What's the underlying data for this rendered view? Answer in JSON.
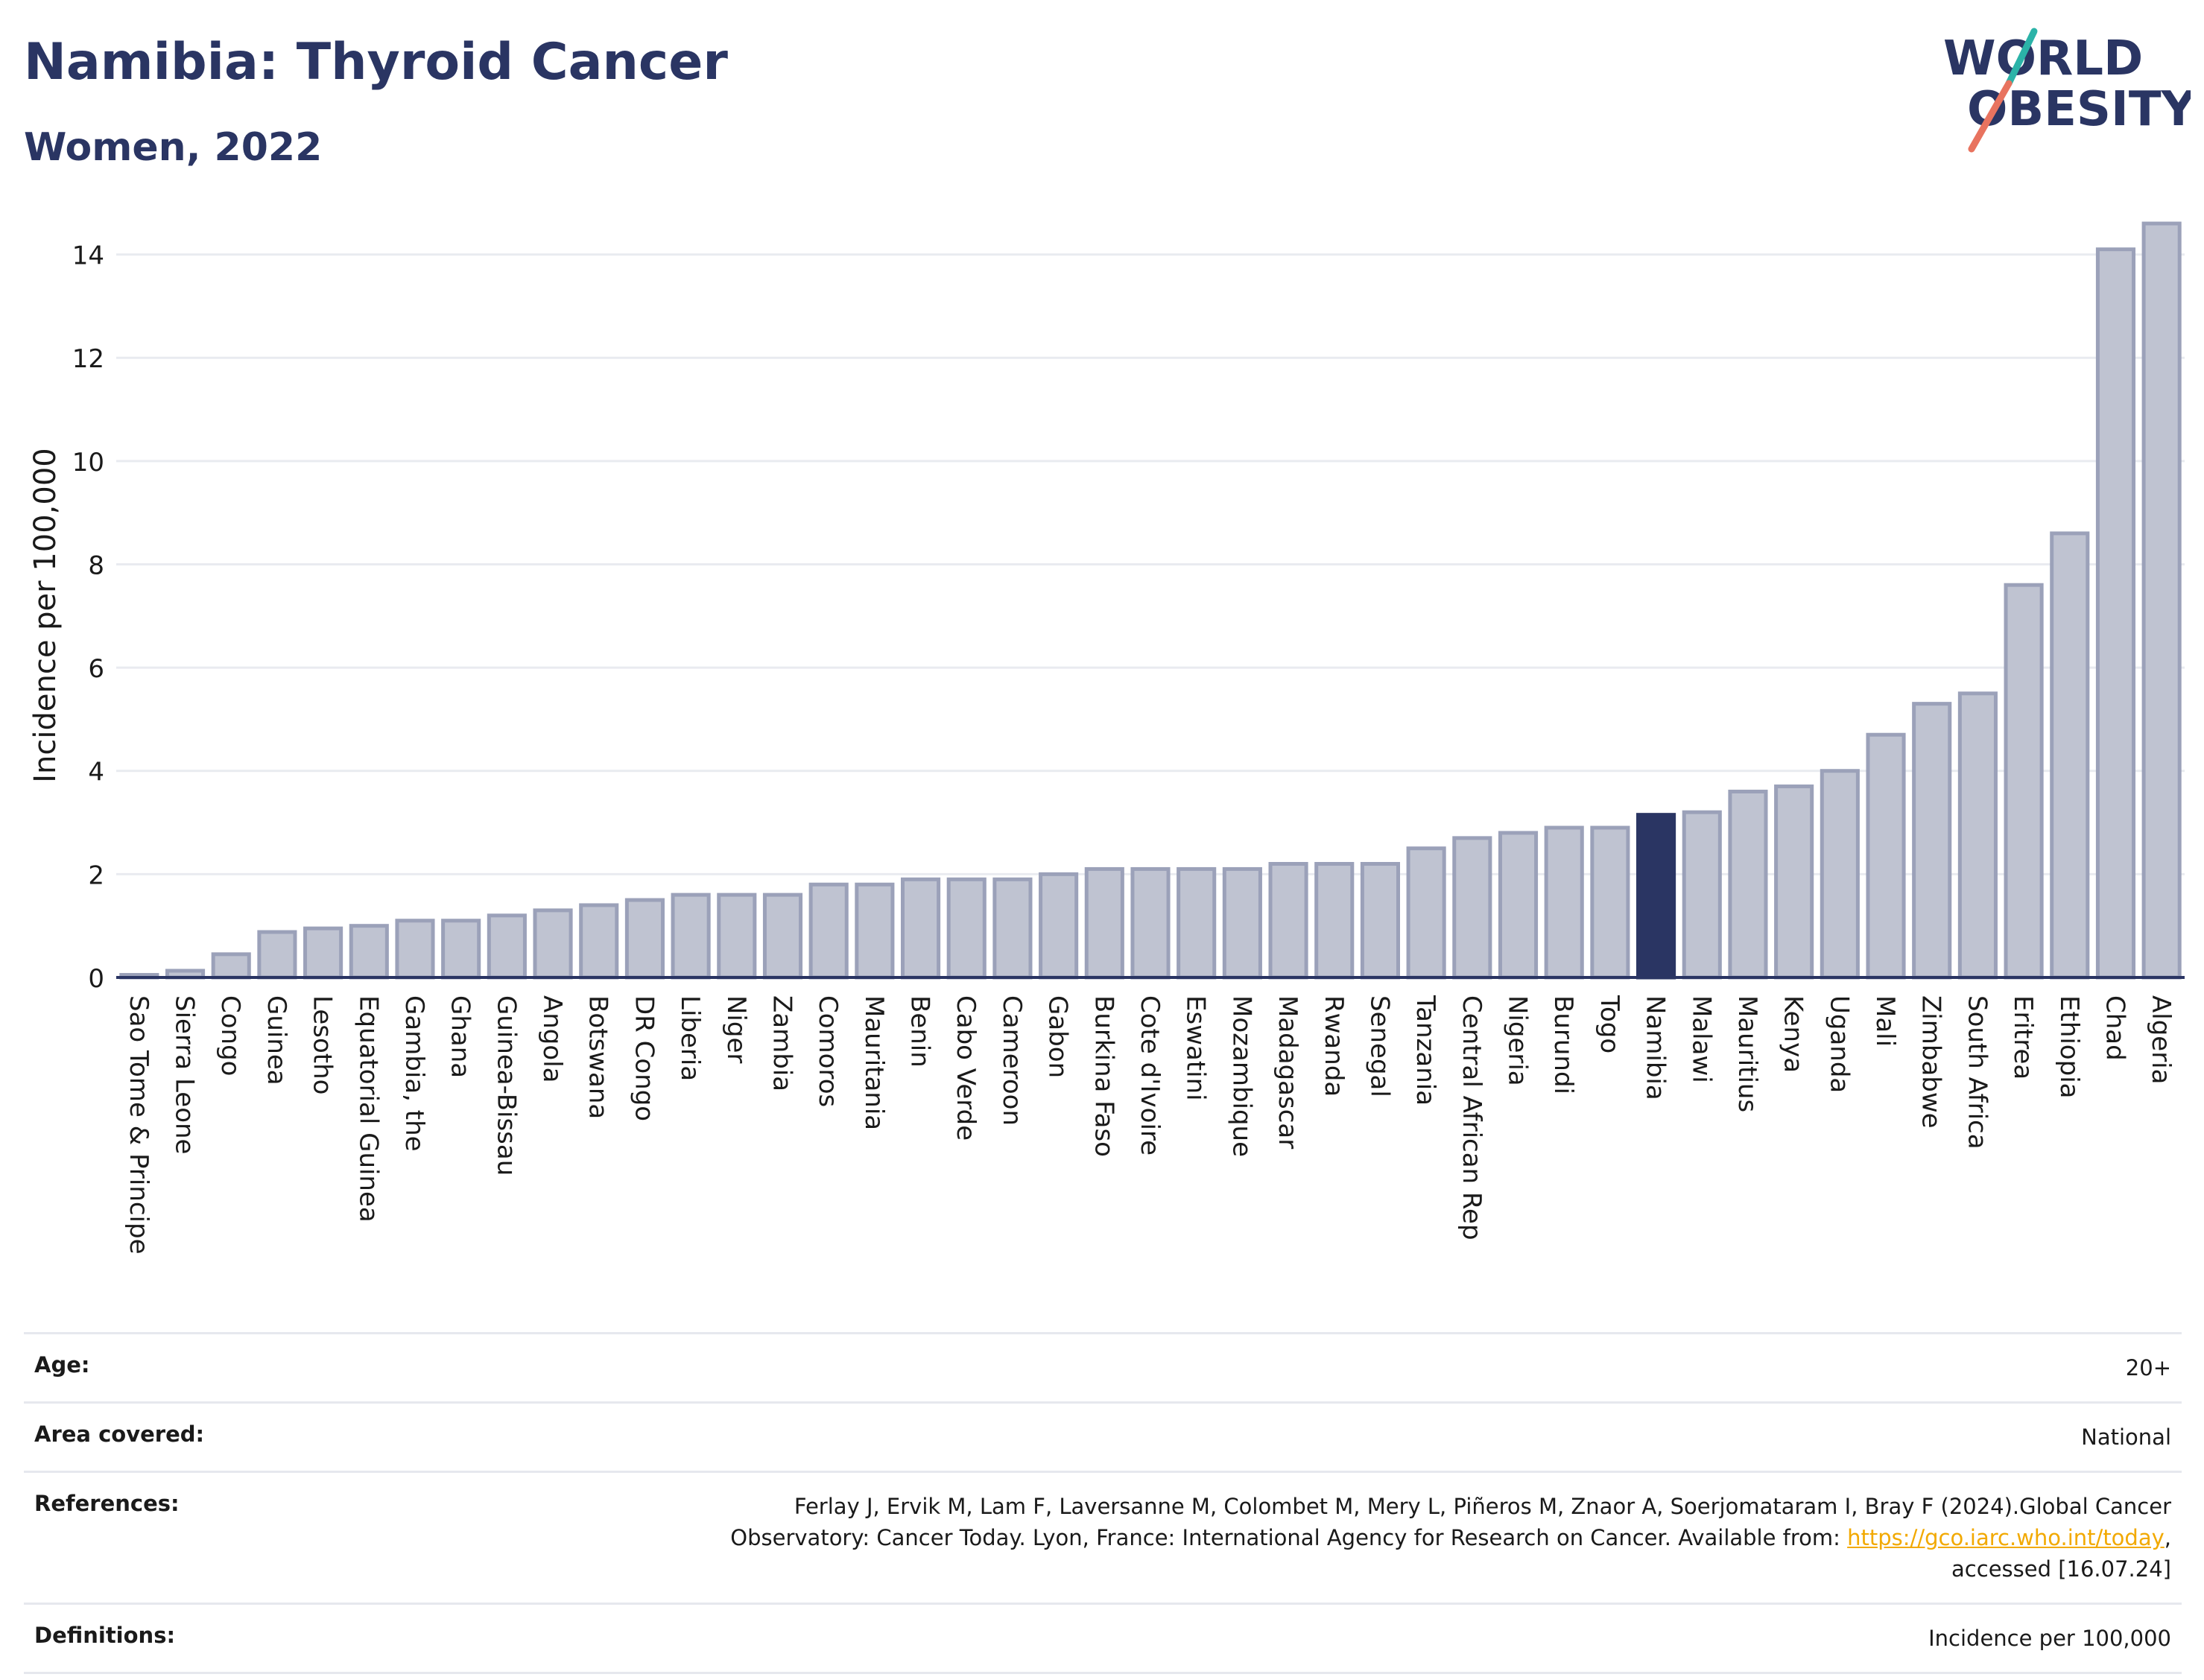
{
  "header": {
    "title": "Namibia: Thyroid Cancer",
    "subtitle": "Women, 2022"
  },
  "logo": {
    "line1": "WORLD",
    "line2": "OBESITY",
    "accent_teal": "#2bb3a8",
    "accent_coral": "#e8735f"
  },
  "colors": {
    "bar_fill": "#bfc3d1",
    "bar_stroke": "#9ba1b9",
    "highlight": "#2a3563",
    "grid": "#e9ebf0",
    "axis": "#2a3563"
  },
  "chart_data": {
    "type": "bar",
    "ylabel": "Incidence per 100,000",
    "ylim": [
      0,
      14.6
    ],
    "yticks": [
      0,
      2,
      4,
      6,
      8,
      10,
      12,
      14
    ],
    "grid": true,
    "highlight": "Namibia",
    "categories": [
      "Sao Tome & Principe",
      "Sierra Leone",
      "Congo",
      "Guinea",
      "Lesotho",
      "Equatorial Guinea",
      "Gambia, the",
      "Ghana",
      "Guinea-Bissau",
      "Angola",
      "Botswana",
      "DR Congo",
      "Liberia",
      "Niger",
      "Zambia",
      "Comoros",
      "Mauritania",
      "Benin",
      "Cabo Verde",
      "Cameroon",
      "Gabon",
      "Burkina Faso",
      "Cote d'Ivoire",
      "Eswatini",
      "Mozambique",
      "Madagascar",
      "Rwanda",
      "Senegal",
      "Tanzania",
      "Central African Rep",
      "Nigeria",
      "Burundi",
      "Togo",
      "Namibia",
      "Malawi",
      "Mauritius",
      "Kenya",
      "Uganda",
      "Mali",
      "Zimbabwe",
      "South Africa",
      "Eritrea",
      "Ethiopia",
      "Chad",
      "Algeria"
    ],
    "values": [
      0.05,
      0.13,
      0.45,
      0.88,
      0.95,
      1.0,
      1.1,
      1.1,
      1.2,
      1.3,
      1.4,
      1.5,
      1.6,
      1.6,
      1.6,
      1.8,
      1.8,
      1.9,
      1.9,
      1.9,
      2.0,
      2.1,
      2.1,
      2.1,
      2.1,
      2.2,
      2.2,
      2.2,
      2.5,
      2.7,
      2.8,
      2.9,
      2.9,
      3.15,
      3.2,
      3.6,
      3.7,
      4.0,
      4.7,
      5.3,
      5.5,
      7.6,
      8.6,
      14.1,
      14.6
    ]
  },
  "info": {
    "age_label": "Age:",
    "age_value": "20+",
    "area_label": "Area covered:",
    "area_value": "National",
    "references_label": "References:",
    "references_line1": "Ferlay J, Ervik M, Lam F, Laversanne M, Colombet M, Mery L, Piñeros M, Znaor A, Soerjomataram I, Bray F (2024).Global Cancer",
    "references_line2_pre": "Observatory: Cancer Today. Lyon, France: International Agency for Research on Cancer. Available from: ",
    "references_link": "https://gco.iarc.who.int/today",
    "references_line2_post": ",",
    "references_line3": "accessed [16.07.24]",
    "definitions_label": "Definitions:",
    "definitions_value": "Incidence per 100,000"
  }
}
